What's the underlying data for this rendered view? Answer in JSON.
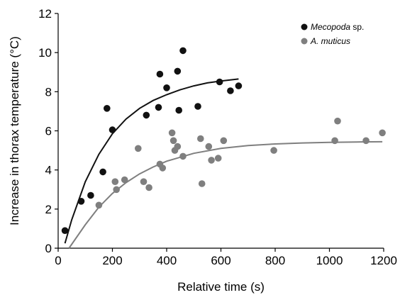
{
  "chart_data": {
    "type": "scatter",
    "xlabel": "Relative time (s)",
    "ylabel": "Increase in thorax temperature (°C)",
    "xlim": [
      0,
      1200
    ],
    "ylim": [
      0,
      12
    ],
    "xticks": [
      0,
      200,
      400,
      600,
      800,
      1000,
      1200
    ],
    "yticks": [
      0,
      2,
      4,
      6,
      8,
      10,
      12
    ],
    "grid": false,
    "legend": {
      "position": "top-right"
    },
    "series": [
      {
        "name": "Mecopoda",
        "name_suffix": " sp.",
        "color": "#111111",
        "points": [
          [
            25,
            0.9
          ],
          [
            85,
            2.4
          ],
          [
            120,
            2.7
          ],
          [
            165,
            3.9
          ],
          [
            180,
            7.15
          ],
          [
            200,
            6.05
          ],
          [
            325,
            6.8
          ],
          [
            370,
            7.2
          ],
          [
            375,
            8.9
          ],
          [
            400,
            8.2
          ],
          [
            440,
            9.05
          ],
          [
            445,
            7.05
          ],
          [
            460,
            10.1
          ],
          [
            515,
            7.25
          ],
          [
            595,
            8.5
          ],
          [
            635,
            8.05
          ],
          [
            665,
            8.3
          ]
        ],
        "fit": [
          [
            25,
            0.25
          ],
          [
            50,
            1.45
          ],
          [
            100,
            3.4
          ],
          [
            150,
            4.8
          ],
          [
            200,
            5.85
          ],
          [
            250,
            6.6
          ],
          [
            300,
            7.15
          ],
          [
            350,
            7.55
          ],
          [
            400,
            7.85
          ],
          [
            450,
            8.1
          ],
          [
            500,
            8.3
          ],
          [
            550,
            8.45
          ],
          [
            600,
            8.55
          ],
          [
            665,
            8.65
          ]
        ]
      },
      {
        "name": "A. muticus",
        "name_suffix": "",
        "color": "#7f7f7f",
        "points": [
          [
            150,
            2.2
          ],
          [
            210,
            3.4
          ],
          [
            215,
            3.0
          ],
          [
            245,
            3.5
          ],
          [
            295,
            5.1
          ],
          [
            315,
            3.4
          ],
          [
            335,
            3.1
          ],
          [
            375,
            4.3
          ],
          [
            385,
            4.1
          ],
          [
            420,
            5.9
          ],
          [
            425,
            5.5
          ],
          [
            430,
            5.0
          ],
          [
            440,
            5.2
          ],
          [
            460,
            4.7
          ],
          [
            525,
            5.6
          ],
          [
            530,
            3.3
          ],
          [
            555,
            5.2
          ],
          [
            565,
            4.5
          ],
          [
            590,
            4.6
          ],
          [
            610,
            5.5
          ],
          [
            795,
            5.0
          ],
          [
            1020,
            5.5
          ],
          [
            1030,
            6.5
          ],
          [
            1135,
            5.5
          ],
          [
            1195,
            5.9
          ]
        ],
        "fit": [
          [
            40,
            0.0
          ],
          [
            100,
            1.2
          ],
          [
            150,
            2.1
          ],
          [
            200,
            2.8
          ],
          [
            250,
            3.35
          ],
          [
            300,
            3.8
          ],
          [
            350,
            4.15
          ],
          [
            400,
            4.45
          ],
          [
            500,
            4.85
          ],
          [
            600,
            5.1
          ],
          [
            700,
            5.25
          ],
          [
            800,
            5.33
          ],
          [
            900,
            5.38
          ],
          [
            1000,
            5.41
          ],
          [
            1100,
            5.43
          ],
          [
            1195,
            5.44
          ]
        ]
      }
    ]
  }
}
